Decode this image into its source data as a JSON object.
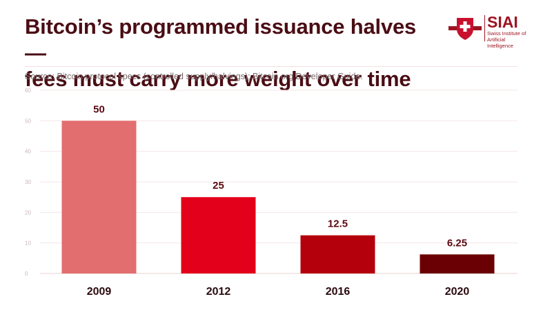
{
  "header": {
    "title_line1": "Bitcoin’s programmed issuance halves—",
    "title_line2": "fees must carry more weight over time",
    "source": "Source: Bitcoin protocol specs (controlled supply/halvings); Bitcoin.org Developer Guide."
  },
  "logo": {
    "name": "SIAI",
    "line1": "Swiss Institute of",
    "line2": "Artificial Intelligence",
    "icon": "swiss-shield-icon"
  },
  "chart_data": {
    "type": "bar",
    "categories": [
      "2009",
      "2012",
      "2016",
      "2020"
    ],
    "values": [
      50,
      25,
      12.5,
      6.25
    ],
    "value_labels": [
      "50",
      "25",
      "12.5",
      "6.25"
    ],
    "colors": [
      "#e36e6f",
      "#e3001a",
      "#b4000c",
      "#6b0004"
    ],
    "ylim": [
      0,
      60
    ],
    "yticks": [
      0,
      10,
      20,
      30,
      40,
      50,
      60
    ],
    "grid": true
  }
}
